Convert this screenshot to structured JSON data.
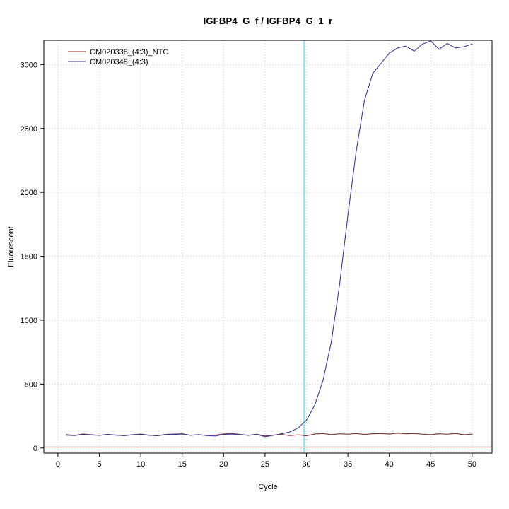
{
  "chart_data": {
    "type": "line",
    "title": "IGFBP4_G_f / IGFBP4_G_1_r",
    "xlabel": "Cycle",
    "ylabel": "Fluorescent",
    "x_ticks": [
      0,
      5,
      10,
      15,
      20,
      25,
      30,
      35,
      40,
      45,
      50
    ],
    "y_ticks": [
      0,
      500,
      1000,
      1500,
      2000,
      2500,
      3000
    ],
    "xlim": [
      -1.7,
      52.4
    ],
    "ylim": [
      -40,
      3190
    ],
    "grid": true,
    "grid_color": "#c8c8c8",
    "legend_position": "top-left",
    "ct_line": {
      "x": 29.7,
      "color": "#80e9f7"
    },
    "threshold_line": {
      "y": 8,
      "color": "#8b2323"
    },
    "x": [
      1,
      2,
      3,
      4,
      5,
      6,
      7,
      8,
      9,
      10,
      11,
      12,
      13,
      14,
      15,
      16,
      17,
      18,
      19,
      20,
      21,
      22,
      23,
      24,
      25,
      26,
      27,
      28,
      29,
      30,
      31,
      32,
      33,
      34,
      35,
      36,
      37,
      38,
      39,
      40,
      41,
      42,
      43,
      44,
      45,
      46,
      47,
      48,
      49,
      50
    ],
    "series": [
      {
        "name": "CM020338_(4:3)_NTC",
        "color": "#8b2a2a",
        "values": [
          105,
          98,
          110,
          104,
          99,
          107,
          101,
          96,
          104,
          109,
          100,
          95,
          106,
          109,
          111,
          99,
          104,
          97,
          101,
          110,
          113,
          106,
          99,
          108,
          94,
          101,
          106,
          97,
          103,
          96,
          109,
          113,
          105,
          111,
          108,
          113,
          106,
          111,
          113,
          109,
          116,
          111,
          113,
          108,
          104,
          111,
          108,
          113,
          104,
          108
        ]
      },
      {
        "name": "CM020348_(4:3)",
        "color": "#3a3a9c",
        "values": [
          100,
          97,
          106,
          101,
          99,
          104,
          100,
          97,
          103,
          106,
          99,
          97,
          104,
          106,
          109,
          100,
          104,
          97,
          94,
          106,
          109,
          104,
          99,
          106,
          88,
          99,
          111,
          126,
          157,
          218,
          335,
          530,
          830,
          1280,
          1820,
          2320,
          2720,
          2930,
          3010,
          3090,
          3130,
          3145,
          3105,
          3160,
          3185,
          3120,
          3165,
          3130,
          3140,
          3160
        ]
      }
    ]
  }
}
